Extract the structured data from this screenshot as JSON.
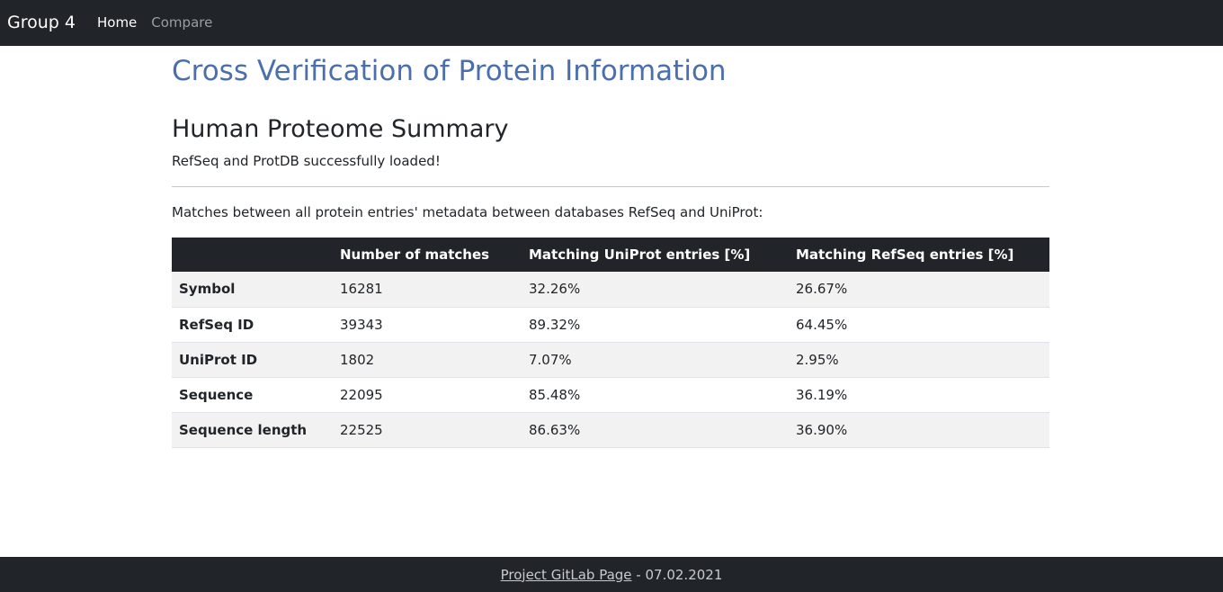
{
  "navbar": {
    "brand": "Group 4",
    "links": [
      {
        "label": "Home",
        "active": true
      },
      {
        "label": "Compare",
        "active": false
      }
    ]
  },
  "main": {
    "title": "Cross Verification of Protein Information",
    "section_title": "Human Proteome Summary",
    "status": "RefSeq and ProtDB successfully loaded!",
    "intro": "Matches between all protein entries' metadata between databases RefSeq and UniProt:"
  },
  "table": {
    "headers": [
      "",
      "Number of matches",
      "Matching UniProt entries [%]",
      "Matching RefSeq entries [%]"
    ],
    "rows": [
      {
        "field": "Symbol",
        "matches": "16281",
        "uniprot": "32.26%",
        "refseq": "26.67%"
      },
      {
        "field": "RefSeq ID",
        "matches": "39343",
        "uniprot": "89.32%",
        "refseq": "64.45%"
      },
      {
        "field": "UniProt ID",
        "matches": "1802",
        "uniprot": "7.07%",
        "refseq": "2.95%"
      },
      {
        "field": "Sequence",
        "matches": "22095",
        "uniprot": "85.48%",
        "refseq": "36.19%"
      },
      {
        "field": "Sequence length",
        "matches": "22525",
        "uniprot": "86.63%",
        "refseq": "36.90%"
      }
    ]
  },
  "footer": {
    "link_label": "Project GitLab Page",
    "date_text": " - 07.02.2021"
  },
  "colors": {
    "navbar_bg": "#212429",
    "title": "#4b6fad",
    "stripe": "#f2f2f2"
  }
}
